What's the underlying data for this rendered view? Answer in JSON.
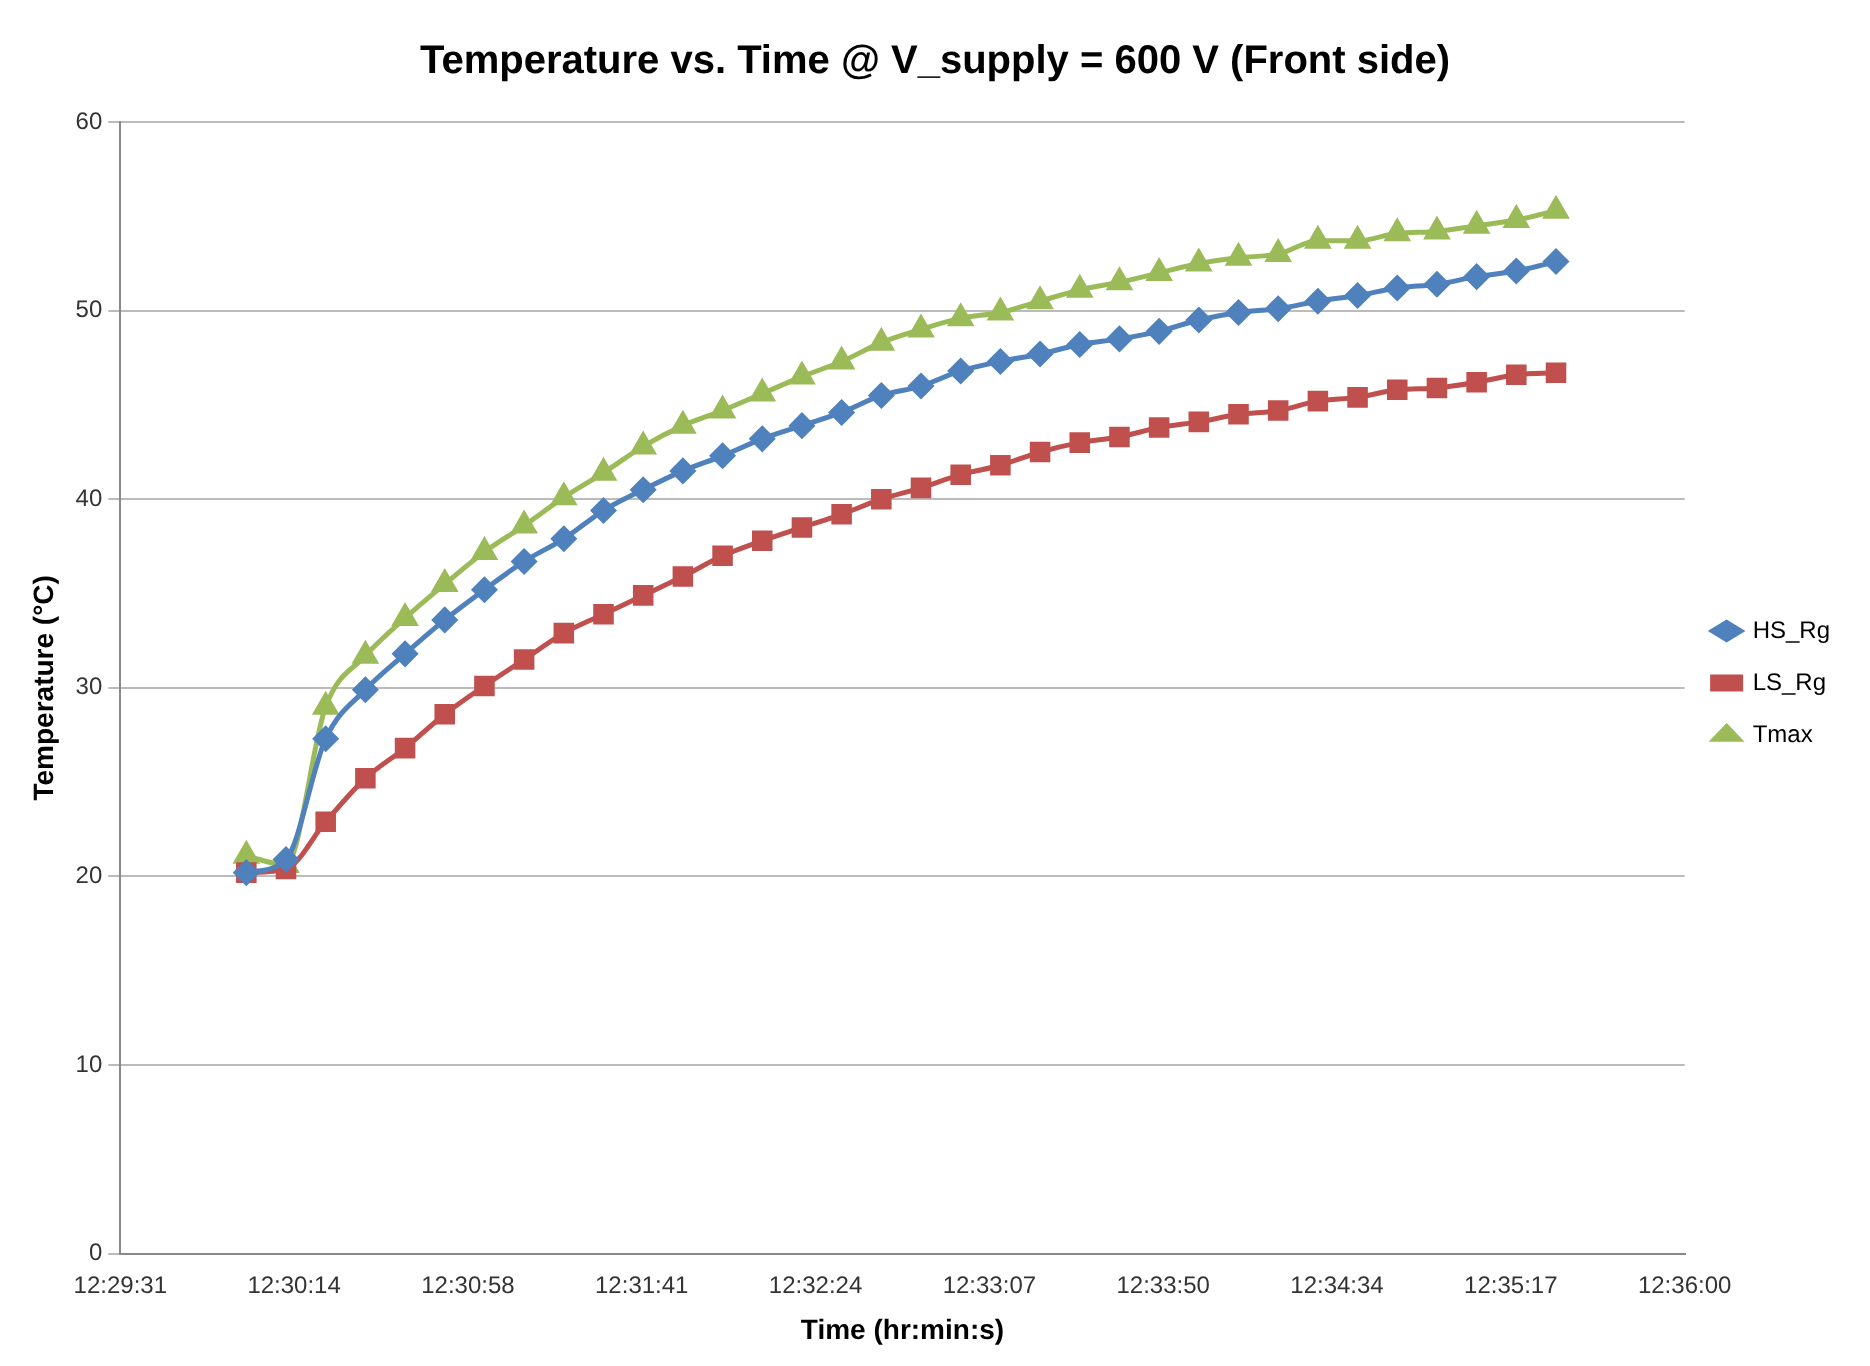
{
  "chart_data": {
    "type": "line",
    "title": "Temperature vs. Time @ V_supply = 600 V (Front side)",
    "xlabel": "Time (hr:min:s)",
    "ylabel": "Temperature (°C)",
    "x": [
      12.5007,
      12.50344,
      12.50618,
      12.50892,
      12.51166,
      12.5144,
      12.51714,
      12.51988,
      12.52262,
      12.52536,
      12.5281,
      12.53084,
      12.53358,
      12.53632,
      12.53906,
      12.5418,
      12.54454,
      12.54728,
      12.55002,
      12.55276,
      12.5555,
      12.55824,
      12.56098,
      12.56372,
      12.56646,
      12.5692,
      12.57194,
      12.57468,
      12.57742,
      12.58016,
      12.5829,
      12.58564,
      12.58838,
      12.59112
    ],
    "series": [
      {
        "name": "HS_Rg",
        "color": "#4f81bd",
        "marker": "diamond",
        "values": [
          20.2,
          20.9,
          27.3,
          29.9,
          31.8,
          33.6,
          35.2,
          36.7,
          37.9,
          39.4,
          40.5,
          41.5,
          42.3,
          43.2,
          43.9,
          44.6,
          45.5,
          46.0,
          46.8,
          47.3,
          47.7,
          48.2,
          48.5,
          48.9,
          49.5,
          49.9,
          50.1,
          50.5,
          50.8,
          51.2,
          51.4,
          51.8,
          52.1,
          52.6
        ]
      },
      {
        "name": "LS_Rg",
        "color": "#c0504d",
        "marker": "square",
        "values": [
          20.2,
          20.4,
          22.9,
          25.2,
          26.8,
          28.6,
          30.1,
          31.5,
          32.9,
          33.9,
          34.9,
          35.9,
          37.0,
          37.8,
          38.5,
          39.2,
          40.0,
          40.6,
          41.3,
          41.8,
          42.5,
          43.0,
          43.3,
          43.8,
          44.1,
          44.5,
          44.7,
          45.2,
          45.4,
          45.8,
          45.9,
          46.2,
          46.6,
          46.7
        ]
      },
      {
        "name": "Tmax",
        "color": "#9bbb59",
        "marker": "triangle",
        "values": [
          21.1,
          20.6,
          29.0,
          31.7,
          33.7,
          35.5,
          37.2,
          38.6,
          40.1,
          41.4,
          42.8,
          43.9,
          44.7,
          45.6,
          46.5,
          47.3,
          48.3,
          49.0,
          49.6,
          49.9,
          50.5,
          51.1,
          51.5,
          52.0,
          52.5,
          52.8,
          53.0,
          53.7,
          53.7,
          54.1,
          54.2,
          54.5,
          54.8,
          55.3
        ]
      }
    ],
    "xlim": [
      12.492,
      12.6
    ],
    "xticks": [
      {
        "value": 12.492,
        "label": "12:29:31"
      },
      {
        "value": 12.504,
        "label": "12:30:14"
      },
      {
        "value": 12.516,
        "label": "12:30:58"
      },
      {
        "value": 12.528,
        "label": "12:31:41"
      },
      {
        "value": 12.54,
        "label": "12:32:24"
      },
      {
        "value": 12.552,
        "label": "12:33:07"
      },
      {
        "value": 12.564,
        "label": "12:33:50"
      },
      {
        "value": 12.576,
        "label": "12:34:34"
      },
      {
        "value": 12.588,
        "label": "12:35:17"
      },
      {
        "value": 12.6,
        "label": "12:36:00"
      }
    ],
    "ylim": [
      0,
      60
    ],
    "yticks": [
      0,
      10,
      20,
      30,
      40,
      50,
      60
    ],
    "grid": "y",
    "legend": "right",
    "line_style": "solid"
  }
}
